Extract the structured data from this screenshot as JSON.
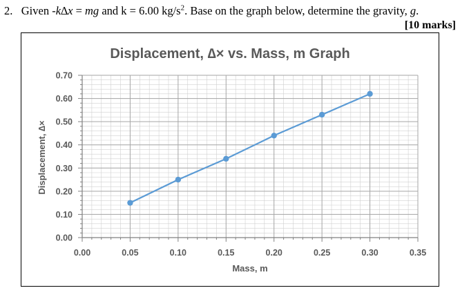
{
  "question": {
    "number": "2.",
    "given": "Given",
    "equation_lhs": "-k∆x",
    "equals": "=",
    "equation_rhs": "mg",
    "and": "and",
    "k_value": "k = 6.00 kg/s",
    "k_exp": "2",
    "instruction": ". Base on the graph below, determine the gravity,",
    "symbol_g": "g",
    "end": ".",
    "marks": "[10 marks]"
  },
  "chart_data": {
    "type": "line",
    "title": "Displacement, ∆× vs. Mass, m Graph",
    "xlabel": "Mass, m",
    "ylabel": "Displacement, ∆×",
    "x": [
      0.05,
      0.1,
      0.15,
      0.2,
      0.25,
      0.3
    ],
    "series": [
      {
        "values": [
          0.15,
          0.25,
          0.34,
          0.44,
          0.53,
          0.62
        ]
      }
    ],
    "xlim": [
      0.0,
      0.35
    ],
    "ylim": [
      0.0,
      0.7
    ],
    "x_ticks": [
      "0.00",
      "0.05",
      "0.10",
      "0.15",
      "0.20",
      "0.25",
      "0.30",
      "0.35"
    ],
    "y_ticks": [
      "0.00",
      "0.10",
      "0.20",
      "0.30",
      "0.40",
      "0.50",
      "0.60",
      "0.70"
    ],
    "grid": true,
    "minor_grid": true,
    "line_color": "#5b9bd5",
    "grid_color": "#d0d0d0",
    "axis_color": "#808080"
  }
}
